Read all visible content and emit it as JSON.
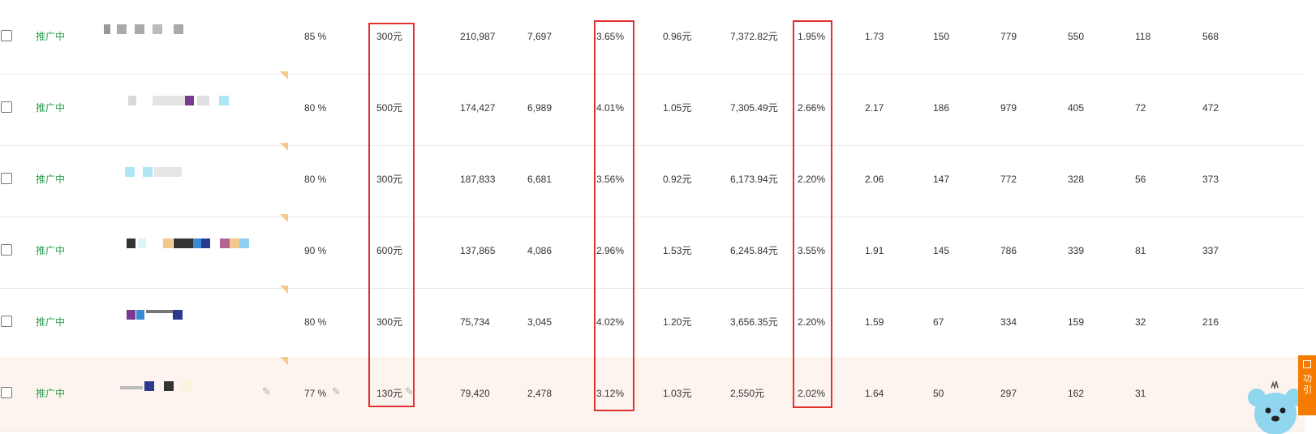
{
  "rows": [
    {
      "status": "推广中",
      "pct": "85 %",
      "budget": "300元",
      "impr": "210,987",
      "clicks": "7,697",
      "ctr": "3.65%",
      "cpc": "0.96元",
      "cost": "7,372.82元",
      "rate": "1.95%",
      "c1": "1.73",
      "c2": "150",
      "c3": "779",
      "c4": "550",
      "c5": "118",
      "c6": "568"
    },
    {
      "status": "推广中",
      "pct": "80 %",
      "budget": "500元",
      "impr": "174,427",
      "clicks": "6,989",
      "ctr": "4.01%",
      "cpc": "1.05元",
      "cost": "7,305.49元",
      "rate": "2.66%",
      "c1": "2.17",
      "c2": "186",
      "c3": "979",
      "c4": "405",
      "c5": "72",
      "c6": "472"
    },
    {
      "status": "推广中",
      "pct": "80 %",
      "budget": "300元",
      "impr": "187,833",
      "clicks": "6,681",
      "ctr": "3.56%",
      "cpc": "0.92元",
      "cost": "6,173.94元",
      "rate": "2.20%",
      "c1": "2.06",
      "c2": "147",
      "c3": "772",
      "c4": "328",
      "c5": "56",
      "c6": "373"
    },
    {
      "status": "推广中",
      "pct": "90 %",
      "budget": "600元",
      "impr": "137,865",
      "clicks": "4,086",
      "ctr": "2.96%",
      "cpc": "1.53元",
      "cost": "6,245.84元",
      "rate": "3.55%",
      "c1": "1.91",
      "c2": "145",
      "c3": "786",
      "c4": "339",
      "c5": "81",
      "c6": "337"
    },
    {
      "status": "推广中",
      "pct": "80 %",
      "budget": "300元",
      "impr": "75,734",
      "clicks": "3,045",
      "ctr": "4.02%",
      "cpc": "1.20元",
      "cost": "3,656.35元",
      "rate": "2.20%",
      "c1": "1.59",
      "c2": "67",
      "c3": "334",
      "c4": "159",
      "c5": "32",
      "c6": "216"
    },
    {
      "status": "推广中",
      "pct": "77 %",
      "budget": "130元",
      "impr": "79,420",
      "clicks": "2,478",
      "ctr": "3.12%",
      "cpc": "1.03元",
      "cost": "2,550元",
      "rate": "2.02%",
      "c1": "1.64",
      "c2": "50",
      "c3": "297",
      "c4": "162",
      "c5": "31",
      "c6": ""
    }
  ],
  "side_panel": {
    "line1": "功",
    "line2": "引"
  },
  "colors": {
    "status": "#2e9e4f",
    "highlight_box": "#e03131",
    "row_highlight": "#fdf4ef",
    "side_tab": "#f57c00"
  }
}
